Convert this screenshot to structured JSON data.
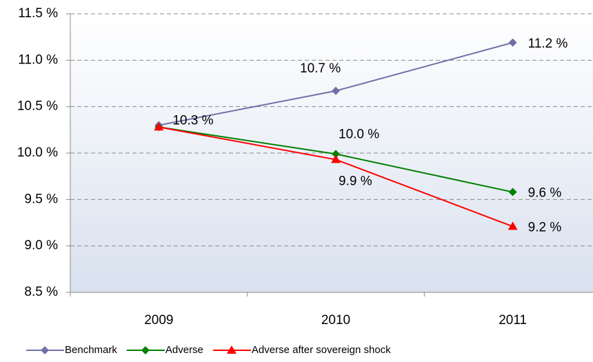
{
  "chart_data": {
    "type": "line",
    "categories": [
      "2009",
      "2010",
      "2011"
    ],
    "series": [
      {
        "name": "Benchmark",
        "color": "#7070a8",
        "marker": "diamond",
        "values": [
          10.3,
          10.67,
          11.19
        ],
        "value_labels": [
          "10.3 %",
          "10.7 %",
          "11.2 %"
        ]
      },
      {
        "name": "Adverse",
        "color": "#008000",
        "marker": "diamond",
        "values": [
          10.28,
          9.99,
          9.58
        ],
        "value_labels": [
          null,
          "10.0 %",
          "9.6 %"
        ]
      },
      {
        "name": "Adverse after sovereign shock",
        "color": "#ff0000",
        "marker": "triangle",
        "values": [
          10.28,
          9.93,
          9.21
        ],
        "value_labels": [
          null,
          "9.9 %",
          "9.2 %"
        ]
      }
    ],
    "ylim": [
      8.5,
      11.5
    ],
    "yticks": [
      {
        "value": 8.5,
        "label": "8.5 %"
      },
      {
        "value": 9.0,
        "label": "9.0 %"
      },
      {
        "value": 9.5,
        "label": "9.5 %"
      },
      {
        "value": 10.0,
        "label": "10.0 %"
      },
      {
        "value": 10.5,
        "label": "10.5 %"
      },
      {
        "value": 11.0,
        "label": "11.0 %"
      },
      {
        "value": 11.5,
        "label": "11.5 %"
      }
    ],
    "grid": true,
    "legend": "bottom"
  }
}
